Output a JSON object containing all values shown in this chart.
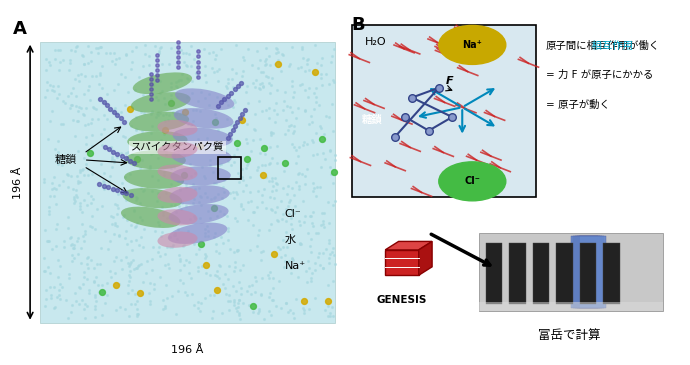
{
  "panel_A_label": "A",
  "panel_B_label": "B",
  "panel_A_bg": "#d6edf0",
  "panel_A_protein_colors": [
    "#7db874",
    "#c080b0",
    "#8090c0"
  ],
  "panel_A_water_color": "#c8e8ee",
  "panel_A_arrow_label_vertical": "196 Å",
  "panel_A_arrow_label_horizontal": "196 Å",
  "panel_A_label_spike": "スパイクタンパク質",
  "panel_A_label_sugar": "糖鎖",
  "panel_A_label_cl": "Cl⁻",
  "panel_A_label_water": "水",
  "panel_A_label_na": "Na⁺",
  "panel_B_label_h2o": "H₂O",
  "panel_B_label_na": "Na⁺",
  "panel_B_label_cl": "Cl⁻",
  "panel_B_label_sugar": "糖鎖",
  "panel_B_label_F": "F",
  "panel_B_text1": "原子間に相互作用が働く",
  "panel_B_text2": "= 力 F が原子にかかる",
  "panel_B_text3": "= 原子が動く",
  "panel_B_highlight_color": "#00aacc",
  "panel_B_na_color": "#c8a800",
  "panel_B_cl_color": "#44bb44",
  "panel_B_box_bg": "#e8f0f8",
  "panel_B_bottom_label": "富岳で計算",
  "genesis_label": "GENESIS",
  "genesis_red": "#cc2222",
  "arrow_color": "#111111",
  "label_fontsize": 11,
  "annotation_fontsize": 9,
  "bg_white": "#ffffff"
}
